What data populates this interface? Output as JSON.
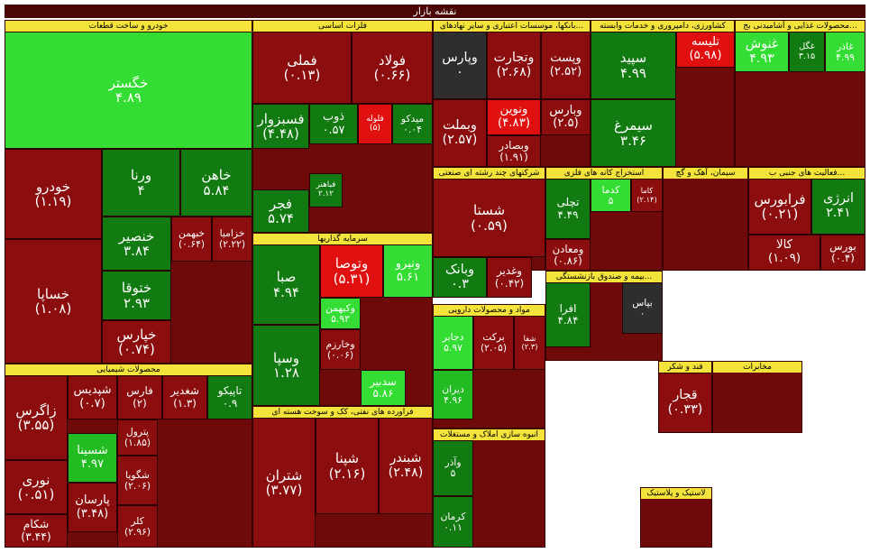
{
  "header": {
    "title": "نقشه بازار"
  },
  "sectors": [
    {
      "name": "خودرو و ساخت قطعات",
      "tiles": [
        {
          "symbol": "خگستر",
          "change": "۴.۸۹",
          "color": "#33dd33"
        },
        {
          "symbol": "خودرو",
          "change": "(۱.۱۹)",
          "color": "#8b0d0d"
        },
        {
          "symbol": "خساپا",
          "change": "(۱.۰۸)",
          "color": "#8b0d0d"
        },
        {
          "symbol": "ورنا",
          "change": "۴",
          "color": "#117a11"
        },
        {
          "symbol": "خاهن",
          "change": "۵.۸۴",
          "color": "#117a11"
        },
        {
          "symbol": "خنصیر",
          "change": "۳.۸۴",
          "color": "#117a11"
        },
        {
          "symbol": "خبهمن",
          "change": "(۰.۶۴)",
          "color": "#8b0d0d"
        },
        {
          "symbol": "خزامیا",
          "change": "(۲.۲۲)",
          "color": "#8b0d0d"
        },
        {
          "symbol": "ختوقا",
          "change": "۲.۹۳",
          "color": "#117a11"
        },
        {
          "symbol": "خپارس",
          "change": "(۰.۷۴)",
          "color": "#8b0d0d"
        }
      ]
    },
    {
      "name": "محصولات شیمیایی",
      "tiles": [
        {
          "symbol": "زاگرس",
          "change": "(۳.۵۵)",
          "color": "#8b0d0d"
        },
        {
          "symbol": "نوری",
          "change": "(۰.۵۱)",
          "color": "#8b0d0d"
        },
        {
          "symbol": "شکام",
          "change": "(۳.۴۴)",
          "color": "#8b0d0d"
        },
        {
          "symbol": "شپدیس",
          "change": "(۰.۷)",
          "color": "#8b0d0d"
        },
        {
          "symbol": "فارس",
          "change": "(۲)",
          "color": "#8b0d0d"
        },
        {
          "symbol": "شغدیر",
          "change": "(۱.۳)",
          "color": "#8b0d0d"
        },
        {
          "symbol": "تاپیکو",
          "change": "۰.۹",
          "color": "#117a11"
        },
        {
          "symbol": "پترول",
          "change": "(۱.۸۵)",
          "color": "#8b0d0d"
        },
        {
          "symbol": "شسینا",
          "change": "۴.۹۷",
          "color": "#22bb22"
        },
        {
          "symbol": "پارسان",
          "change": "(۳.۴۸)",
          "color": "#8b0d0d"
        },
        {
          "symbol": "شگویا",
          "change": "(۲.۰۶)",
          "color": "#8b0d0d"
        },
        {
          "symbol": "کلر",
          "change": "(۲.۹۶)",
          "color": "#8b0d0d"
        }
      ]
    },
    {
      "name": "فلزات اساسی",
      "tiles": [
        {
          "symbol": "فملی",
          "change": "(۰.۱۳)",
          "color": "#8b0d0d"
        },
        {
          "symbol": "فولاد",
          "change": "(۰.۶۶)",
          "color": "#8b0d0d"
        },
        {
          "symbol": "فسبزوار",
          "change": "(۴.۴۸)",
          "color": "#117a11"
        },
        {
          "symbol": "ذوب",
          "change": "۰.۵۷",
          "color": "#117a11"
        },
        {
          "symbol": "فلوله",
          "change": "(۵)",
          "color": "#e01010"
        },
        {
          "symbol": "میدکو",
          "change": "۰.۰۴",
          "color": "#117a11"
        },
        {
          "symbol": "فباهنر",
          "change": "۲.۱۲",
          "color": "#117a11"
        },
        {
          "symbol": "فجر",
          "change": "۵.۷۴",
          "color": "#117a11"
        }
      ]
    },
    {
      "name": "سرمایه گذاریها",
      "tiles": [
        {
          "symbol": "صبا",
          "change": "۴.۹۴",
          "color": "#117a11"
        },
        {
          "symbol": "وسپا",
          "change": "۱.۲۸",
          "color": "#117a11"
        },
        {
          "symbol": "وتوصا",
          "change": "(۵.۳۱)",
          "color": "#e01010"
        },
        {
          "symbol": "ونیرو",
          "change": "۵.۶۱",
          "color": "#33dd33"
        },
        {
          "symbol": "وکبهمن",
          "change": "۵.۹۳",
          "color": "#33dd33"
        },
        {
          "symbol": "وخارزم",
          "change": "(۰.۰۶)",
          "color": "#8b0d0d"
        },
        {
          "symbol": "سدبیر",
          "change": "۵.۸۶",
          "color": "#33dd33"
        }
      ]
    },
    {
      "name": "فراورده های نفتی، کک و سوخت هسته ای",
      "tiles": [
        {
          "symbol": "شتران",
          "change": "(۳.۷۷)",
          "color": "#8b0d0d"
        },
        {
          "symbol": "شپنا",
          "change": "(۲.۱۶)",
          "color": "#8b0d0d"
        },
        {
          "symbol": "شبندر",
          "change": "(۲.۴۸)",
          "color": "#8b0d0d"
        }
      ]
    },
    {
      "name": "بانکها، موسسات اعتباری و سایر نهادهای...",
      "tiles": [
        {
          "symbol": "وپارس",
          "change": "۰",
          "color": "#2e2e2e"
        },
        {
          "symbol": "وتجارت",
          "change": "(۲.۶۸)",
          "color": "#8b0d0d"
        },
        {
          "symbol": "وپست",
          "change": "(۲.۵۲)",
          "color": "#8b0d0d"
        },
        {
          "symbol": "وبملت",
          "change": "(۲.۵۷)",
          "color": "#8b0d0d"
        },
        {
          "symbol": "ونوین",
          "change": "(۴.۸۳)",
          "color": "#e01010"
        },
        {
          "symbol": "وبارس",
          "change": "(۲.۵)",
          "color": "#8b0d0d"
        },
        {
          "symbol": "وبصادر",
          "change": "(۱.۹۱)",
          "color": "#8b0d0d"
        }
      ]
    },
    {
      "name": "کشاورزی، دامپروری و خدمات وابسته",
      "tiles": [
        {
          "symbol": "سپید",
          "change": "۴.۹۹",
          "color": "#117a11"
        },
        {
          "symbol": "سیمرغ",
          "change": "۳.۴۶",
          "color": "#117a11"
        },
        {
          "symbol": "تلیسه",
          "change": "(۵.۹۸)",
          "color": "#e01010"
        }
      ]
    },
    {
      "name": "محصولات غذایی و آشامیدنی بج...",
      "tiles": [
        {
          "symbol": "غنوش",
          "change": "۴.۹۳",
          "color": "#33dd33"
        },
        {
          "symbol": "غگل",
          "change": "۳.۱۵",
          "color": "#117a11"
        },
        {
          "symbol": "غاذر",
          "change": "۴.۹۹",
          "color": "#33dd33"
        }
      ]
    },
    {
      "name": "شرکتهای چند رشته ای صنعتی",
      "tiles": [
        {
          "symbol": "شستا",
          "change": "(۰.۵۹)",
          "color": "#8b0d0d"
        },
        {
          "symbol": "وبانک",
          "change": "۰.۳",
          "color": "#117a11"
        },
        {
          "symbol": "وغدیر",
          "change": "(۰.۴۲)",
          "color": "#8b0d0d"
        }
      ]
    },
    {
      "name": "استخراج کانه های فلزی",
      "tiles": [
        {
          "symbol": "تچلی",
          "change": "۴.۴۹",
          "color": "#117a11"
        },
        {
          "symbol": "کدما",
          "change": "۵",
          "color": "#33dd33"
        },
        {
          "symbol": "کاما",
          "change": "(۲.۱۴)",
          "color": "#8b0d0d"
        },
        {
          "symbol": "ومعادن",
          "change": "(۰.۸۶)",
          "color": "#8b0d0d"
        }
      ]
    },
    {
      "name": "سیمان، آهک و گچ",
      "tiles": []
    },
    {
      "name": "فعالیت های جنبی ب...",
      "tiles": [
        {
          "symbol": "فرابورس",
          "change": "(۰.۲۱)",
          "color": "#8b0d0d"
        },
        {
          "symbol": "انرژی",
          "change": "۲.۴۱",
          "color": "#117a11"
        },
        {
          "symbol": "کالا",
          "change": "(۱.۰۹)",
          "color": "#8b0d0d"
        },
        {
          "symbol": "بورس",
          "change": "(۰.۴)",
          "color": "#8b0d0d"
        }
      ]
    },
    {
      "name": "مواد و محصولات دارویی",
      "tiles": [
        {
          "symbol": "دجابر",
          "change": "۵.۹۷",
          "color": "#33dd33"
        },
        {
          "symbol": "برکت",
          "change": "(۲.۰۵)",
          "color": "#8b0d0d"
        },
        {
          "symbol": "شفا",
          "change": "(۲.۳)",
          "color": "#8b0d0d"
        },
        {
          "symbol": "دیران",
          "change": "۴.۹۶",
          "color": "#22bb22"
        }
      ]
    },
    {
      "name": "بیمه و صندوق بازنشستگی...",
      "tiles": [
        {
          "symbol": "افرا",
          "change": "۴.۸۴",
          "color": "#117a11"
        },
        {
          "symbol": "بپاس",
          "change": "۰",
          "color": "#2e2e2e"
        }
      ]
    },
    {
      "name": "انبوه سازی املاک و مستغلات",
      "tiles": [
        {
          "symbol": "وآذر",
          "change": "۵",
          "color": "#117a11"
        },
        {
          "symbol": "کرمان",
          "change": "۰.۱۱",
          "color": "#117a11"
        }
      ]
    },
    {
      "name": "قند و شکر",
      "tiles": [
        {
          "symbol": "قجار",
          "change": "(۰.۳۳)",
          "color": "#8b0d0d"
        }
      ]
    },
    {
      "name": "مخابرات",
      "tiles": []
    },
    {
      "name": "لاستیک و پلاستیک",
      "tiles": []
    }
  ]
}
